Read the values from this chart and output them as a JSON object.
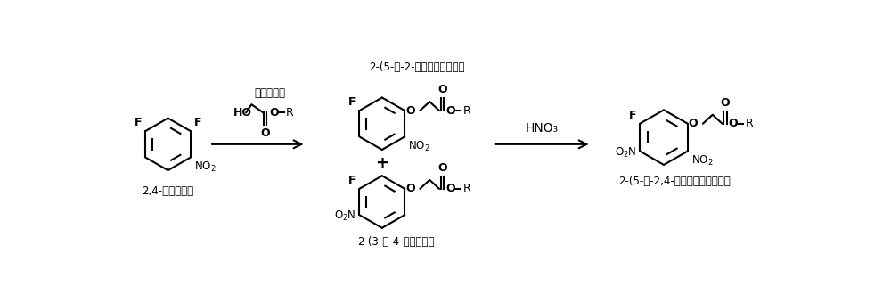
{
  "background_color": "#ffffff",
  "text_color": "#000000",
  "fig_width": 10.0,
  "fig_height": 3.22,
  "dpi": 100,
  "label_2_4_difluoro": "2,4-二氟瞄基苯",
  "label_hydroxy": "羟基乙酸酯",
  "label_product1": "2-(5-氟-2-瞄基苯氧）乙酸酯",
  "label_product2": "2-(3-氟-4-瞄基苯氧）",
  "label_final": "2-(5-氟-2,4-二瞄基苯氧）乙酸酯",
  "reagent1": "HNO₃",
  "line_width": 1.5,
  "font_size_mol": 9,
  "font_size_label": 8.5,
  "font_size_reagent": 10
}
